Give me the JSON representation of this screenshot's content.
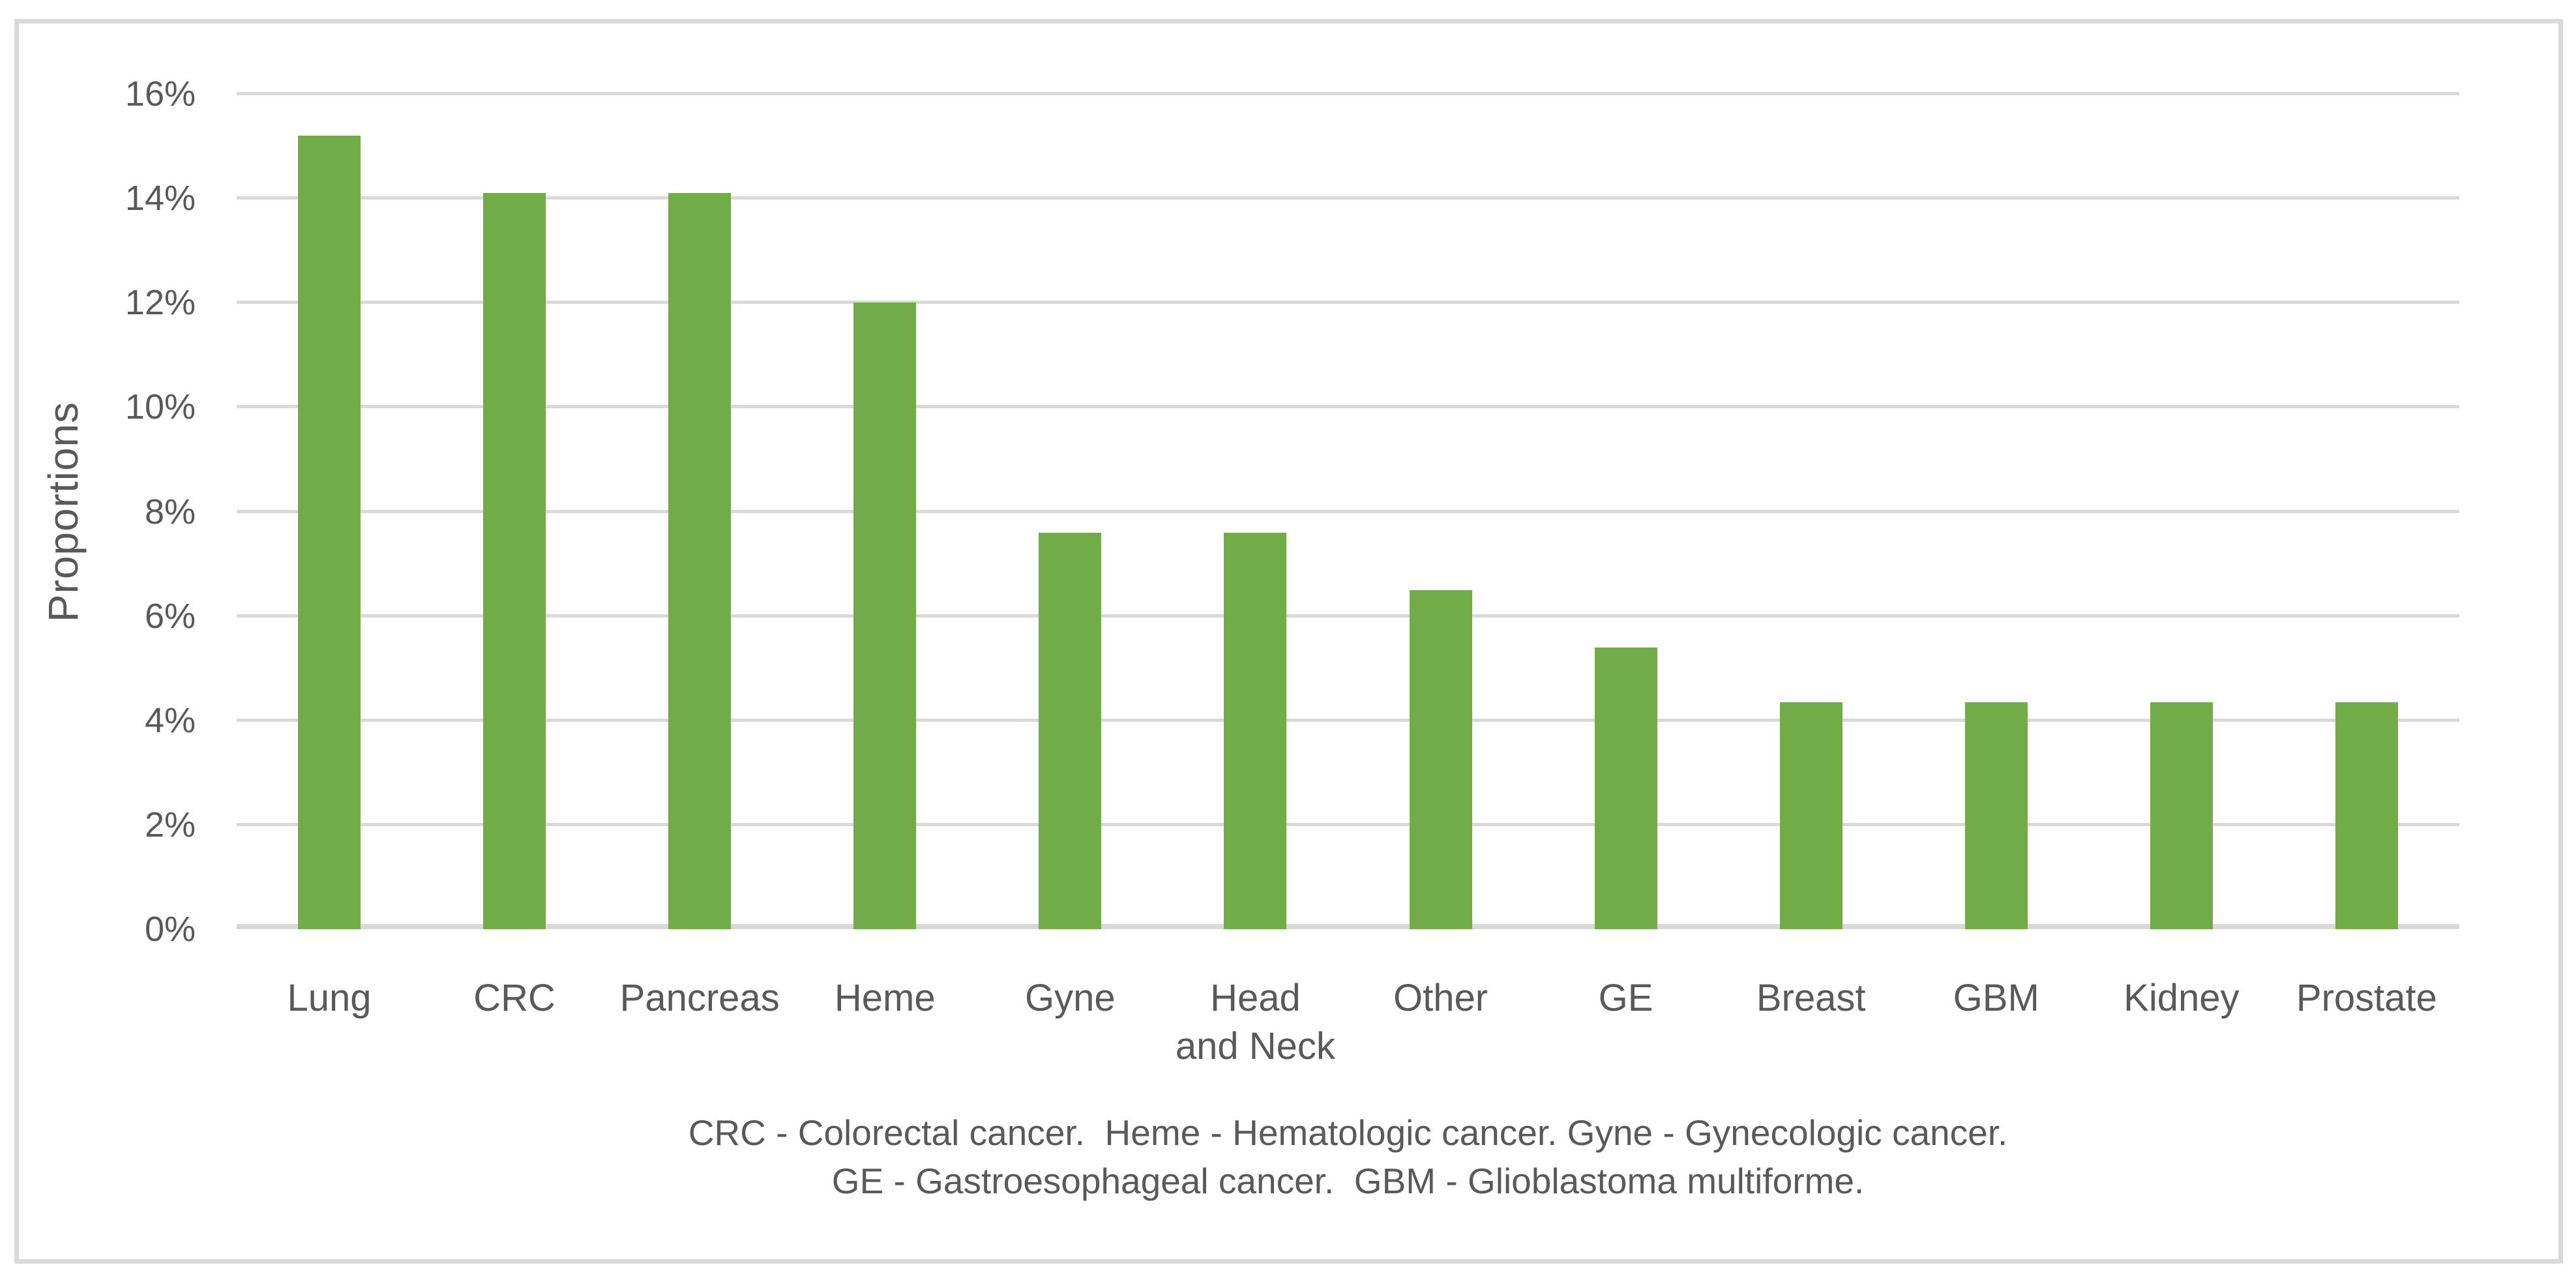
{
  "figure": {
    "background": "#FFFFFF",
    "border_color": "#D9D9D9"
  },
  "chart_data": {
    "type": "bar",
    "title": "",
    "xlabel": "",
    "ylabel": "Proportions",
    "categories": [
      "Lung",
      "CRC",
      "Pancreas",
      "Heme",
      "Gyne",
      "Head\nand Neck",
      "Other",
      "GE",
      "Breast",
      "GBM",
      "Kidney",
      "Prostate"
    ],
    "values": [
      15.2,
      14.1,
      14.1,
      12.0,
      7.6,
      7.6,
      6.5,
      5.4,
      4.35,
      4.35,
      4.35,
      4.35
    ],
    "unit": "%",
    "ylim": [
      0,
      16
    ],
    "ytick_step": 2,
    "ytick_labels": [
      "0%",
      "2%",
      "4%",
      "6%",
      "8%",
      "10%",
      "12%",
      "14%",
      "16%"
    ],
    "grid": true,
    "legend": "none",
    "bar_color": "#70AD47",
    "gridline_color": "#D9D9D9",
    "axis_text_color": "#595959"
  },
  "footnote": {
    "line1": "CRC - Colorectal cancer.  Heme - Hematologic cancer. Gyne - Gynecologic cancer.",
    "line2": "GE - Gastroesophageal cancer.  GBM - Glioblastoma multiforme."
  }
}
